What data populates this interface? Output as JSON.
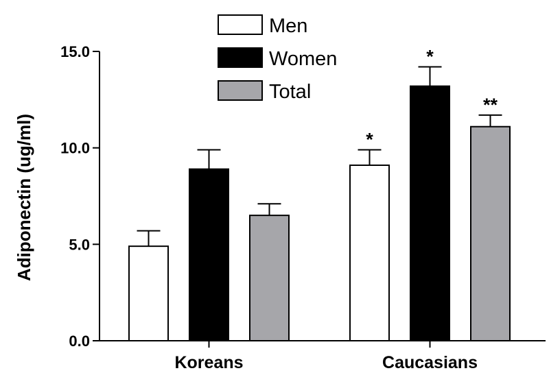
{
  "chart_data": {
    "type": "bar",
    "categories": [
      "Koreans",
      "Caucasians"
    ],
    "series": [
      {
        "name": "Men",
        "values": [
          4.9,
          9.1
        ],
        "errors": [
          0.8,
          0.8
        ],
        "fill": "#ffffff",
        "significance": [
          "",
          "*"
        ]
      },
      {
        "name": "Women",
        "values": [
          8.9,
          13.2
        ],
        "errors": [
          1.0,
          1.0
        ],
        "fill": "#000000",
        "significance": [
          "",
          "*"
        ]
      },
      {
        "name": "Total",
        "values": [
          6.5,
          11.1
        ],
        "errors": [
          0.6,
          0.6
        ],
        "fill": "#a6a6aa",
        "significance": [
          "",
          "**"
        ]
      }
    ],
    "ylabel": "Adiponectin (ug/ml)",
    "xlabel": "",
    "ylim": [
      0,
      15
    ],
    "yticks": [
      0,
      5,
      10,
      15
    ],
    "ytick_labels": [
      "0.0",
      "5.0",
      "10.0",
      "15.0"
    ],
    "grid": false,
    "legend_position": "top-left"
  }
}
